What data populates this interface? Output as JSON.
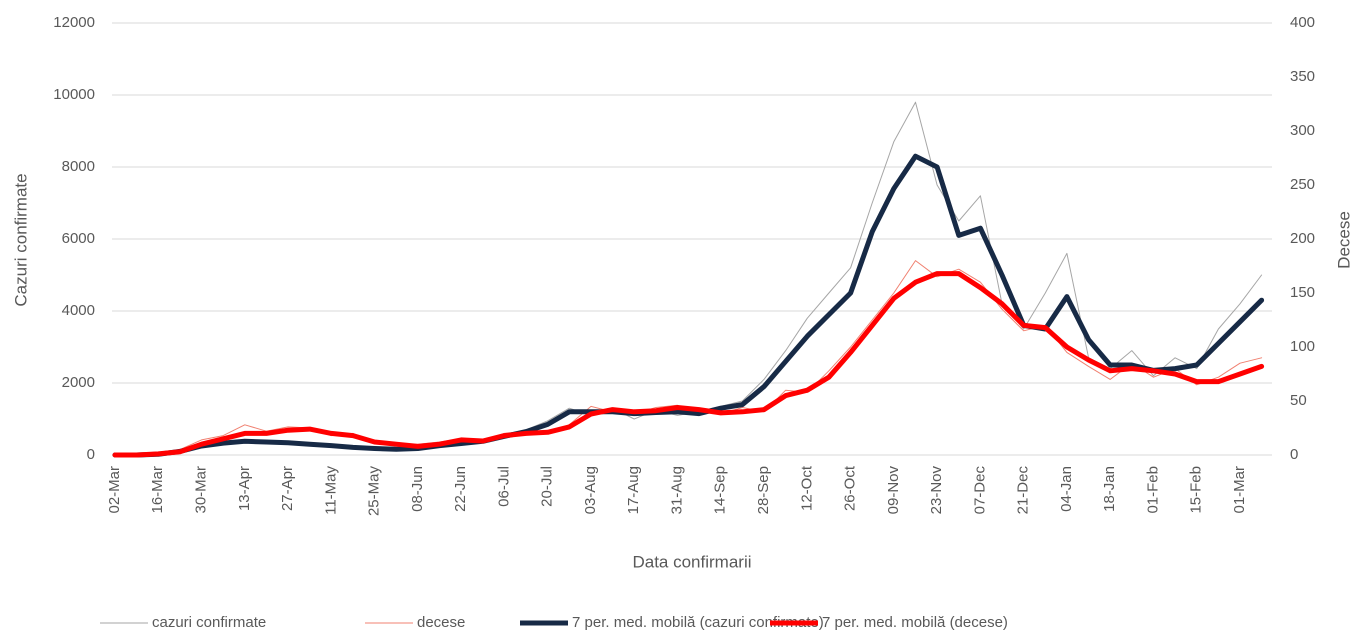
{
  "chart_data": {
    "type": "line",
    "ylabel": "Cazuri confirmate",
    "y2label": "Decese",
    "xlabel": "Data confirmarii",
    "categories": [
      "02-Mar",
      null,
      "16-Mar",
      null,
      "30-Mar",
      null,
      "13-Apr",
      null,
      "27-Apr",
      null,
      "11-May",
      null,
      "25-May",
      null,
      "08-Jun",
      null,
      "22-Jun",
      null,
      "06-Jul",
      null,
      "20-Jul",
      null,
      "03-Aug",
      null,
      "17-Aug",
      null,
      "31-Aug",
      null,
      "14-Sep",
      null,
      "28-Sep",
      null,
      "12-Oct",
      null,
      "26-Oct",
      null,
      "09-Nov",
      null,
      "23-Nov",
      null,
      "07-Dec",
      null,
      "21-Dec",
      null,
      "04-Jan",
      null,
      "18-Jan",
      null,
      "01-Feb",
      null,
      "15-Feb",
      null,
      "01-Mar",
      null
    ],
    "ylim": [
      0,
      12000
    ],
    "yticks": [
      0,
      2000,
      4000,
      6000,
      8000,
      10000,
      12000
    ],
    "y2lim": [
      0,
      400
    ],
    "y2ticks": [
      0,
      50,
      100,
      150,
      200,
      250,
      300,
      350,
      400
    ],
    "grid": true,
    "legend": "bottom",
    "series": [
      {
        "name": "cazuri confirmate",
        "color": "#a6a6a6",
        "width": 1,
        "values": [
          0,
          0,
          40,
          150,
          300,
          380,
          420,
          330,
          380,
          310,
          270,
          230,
          200,
          150,
          200,
          300,
          350,
          420,
          560,
          700,
          950,
          1300,
          1100,
          1300,
          1000,
          1250,
          1100,
          1200,
          1350,
          1500,
          2100,
          2900,
          3800,
          4500,
          5200,
          7000,
          8700,
          9800,
          7500,
          6500,
          7200,
          4200,
          3500,
          4500,
          5600,
          2700,
          2400,
          2900,
          2200,
          2700,
          2400,
          3500,
          4200,
          5000
        ]
      },
      {
        "name": "decese",
        "color": "#f08070",
        "width": 1,
        "axis": "y2",
        "values": [
          0,
          0,
          1,
          5,
          14,
          18,
          28,
          22,
          26,
          25,
          18,
          20,
          11,
          9,
          10,
          12,
          15,
          13,
          20,
          22,
          21,
          28,
          45,
          40,
          38,
          44,
          46,
          40,
          38,
          44,
          40,
          60,
          58,
          78,
          100,
          125,
          150,
          180,
          165,
          172,
          160,
          135,
          115,
          120,
          95,
          82,
          70,
          85,
          72,
          80,
          65,
          72,
          85,
          90
        ]
      },
      {
        "name": "7 per. med. mobilă (cazuri confirmate)",
        "color": "#172a46",
        "width": 5,
        "values": [
          0,
          0,
          20,
          100,
          250,
          330,
          380,
          360,
          340,
          300,
          260,
          210,
          180,
          160,
          180,
          260,
          320,
          380,
          520,
          650,
          850,
          1200,
          1200,
          1200,
          1150,
          1180,
          1200,
          1150,
          1300,
          1400,
          1900,
          2600,
          3300,
          3900,
          4500,
          6200,
          7400,
          8300,
          8000,
          6100,
          6300,
          5000,
          3600,
          3500,
          4400,
          3200,
          2500,
          2500,
          2350,
          2400,
          2500,
          3100,
          3700,
          4300
        ]
      },
      {
        "name": "7 per. med. mobilă (decese)",
        "color": "#ff0000",
        "width": 5,
        "axis": "y2",
        "values": [
          0,
          0,
          1,
          3,
          10,
          15,
          20,
          20,
          23,
          24,
          20,
          18,
          12,
          10,
          8,
          10,
          14,
          13,
          18,
          20,
          21,
          26,
          38,
          42,
          40,
          41,
          44,
          42,
          39,
          40,
          42,
          55,
          60,
          72,
          95,
          120,
          145,
          160,
          168,
          168,
          155,
          140,
          120,
          118,
          100,
          88,
          78,
          80,
          78,
          75,
          68,
          68,
          75,
          82
        ]
      }
    ]
  }
}
